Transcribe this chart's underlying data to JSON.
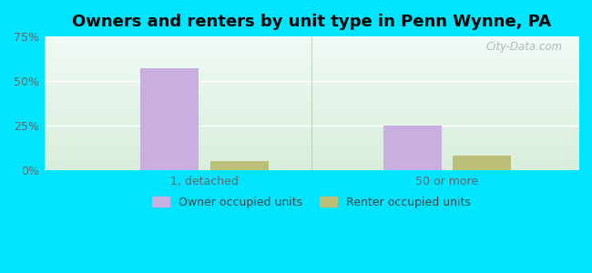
{
  "title": "Owners and renters by unit type in Penn Wynne, PA",
  "categories": [
    "1, detached",
    "50 or more"
  ],
  "owner_values": [
    57.0,
    25.0
  ],
  "renter_values": [
    5.0,
    8.0
  ],
  "owner_color": "#c9aee0",
  "renter_color": "#bbbf78",
  "ylim": [
    0,
    75
  ],
  "yticks": [
    0,
    25,
    50,
    75
  ],
  "ytick_labels": [
    "0%",
    "25%",
    "50%",
    "75%"
  ],
  "bar_width": 0.12,
  "group_positions": [
    0.28,
    0.78
  ],
  "legend_owner": "Owner occupied units",
  "legend_renter": "Renter occupied units",
  "title_fontsize": 13,
  "outer_bg": "#00e5ff",
  "watermark": "City-Data.com"
}
